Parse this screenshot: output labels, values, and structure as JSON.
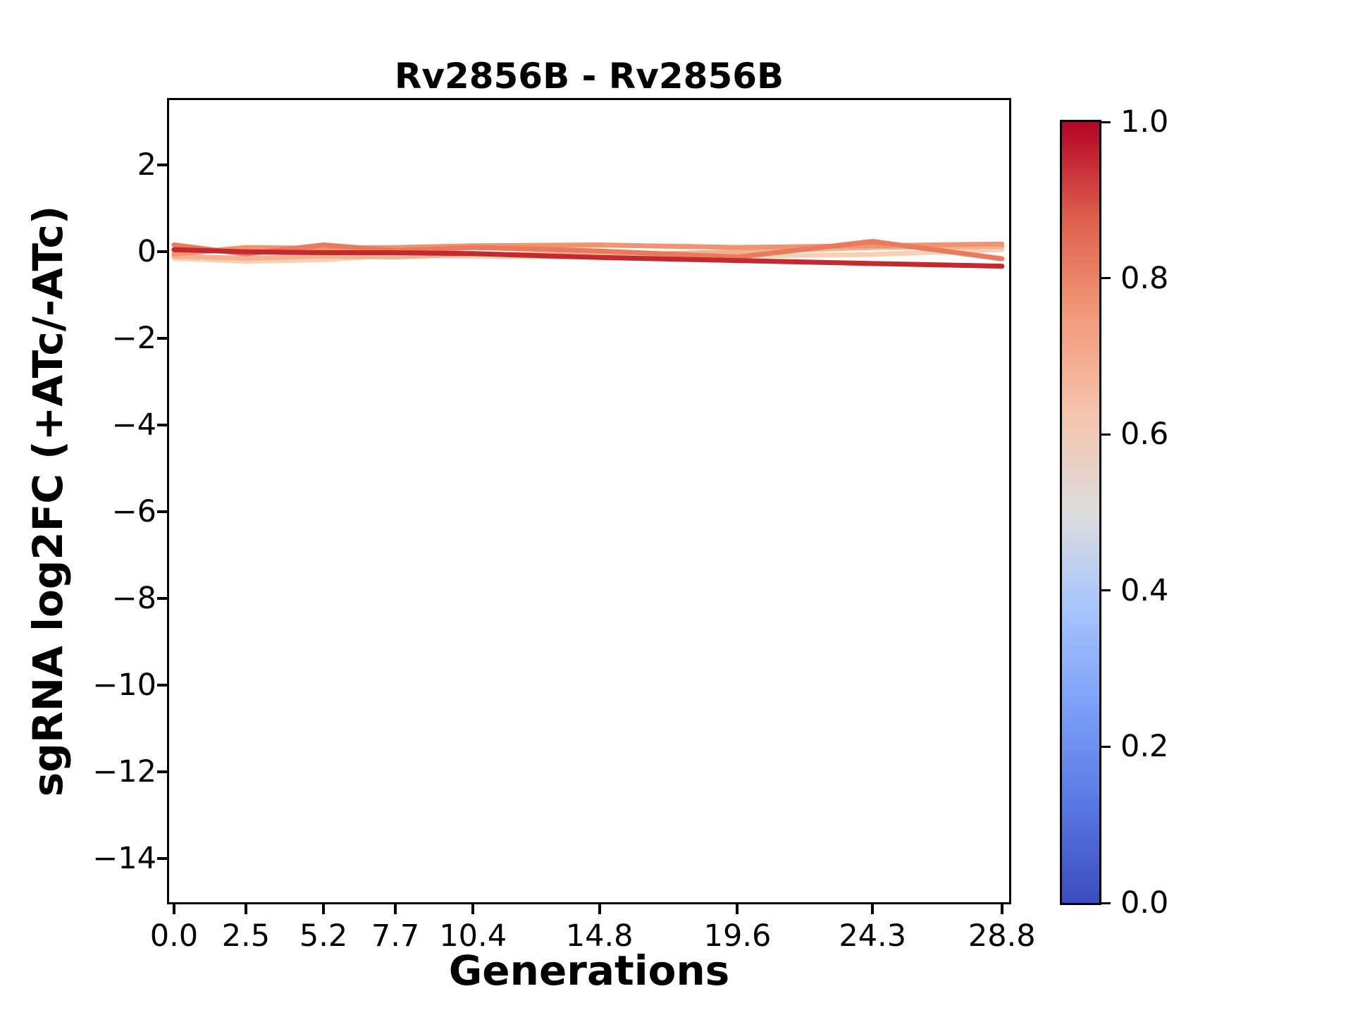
{
  "chart_data": {
    "type": "line",
    "title": "Rv2856B - Rv2856B",
    "xlabel": "Generations",
    "ylabel": "sgRNA log2FC (+ATc/-ATc)",
    "grid": false,
    "legend": "none (colorbar encodes line value)",
    "xlim": [
      -0.17,
      29.05
    ],
    "ylim": [
      -15,
      3.5
    ],
    "x": [
      0.0,
      2.5,
      5.2,
      7.7,
      10.4,
      14.8,
      19.6,
      24.3,
      28.8
    ],
    "xticks": {
      "values": [
        0.0,
        2.5,
        5.2,
        7.7,
        10.4,
        14.8,
        19.6,
        24.3,
        28.8
      ],
      "labels": [
        "0.0",
        "2.5",
        "5.2",
        "7.7",
        "10.4",
        "14.8",
        "19.6",
        "24.3",
        "28.8"
      ]
    },
    "yticks": {
      "values": [
        2,
        0,
        -2,
        -4,
        -6,
        -8,
        -10,
        -12,
        -14
      ],
      "labels": [
        "2",
        "0",
        "−2",
        "−4",
        "−6",
        "−8",
        "−10",
        "−12",
        "−14"
      ]
    },
    "series": [
      {
        "id": "line-5",
        "colormap_value": 0.58,
        "color": "#f8d0b5",
        "values": [
          -0.15,
          -0.22,
          -0.18,
          -0.08,
          -0.1,
          -0.12,
          -0.1,
          -0.06,
          0.05
        ]
      },
      {
        "id": "line-4",
        "colormap_value": 0.68,
        "color": "#f4b191",
        "values": [
          -0.1,
          -0.15,
          -0.1,
          -0.12,
          -0.05,
          -0.08,
          0.0,
          0.1,
          0.12
        ]
      },
      {
        "id": "line-3",
        "colormap_value": 0.76,
        "color": "#f0946f",
        "values": [
          -0.05,
          0.1,
          0.08,
          0.1,
          0.14,
          0.16,
          0.1,
          0.14,
          0.18
        ]
      },
      {
        "id": "line-2",
        "colormap_value": 0.84,
        "color": "#ea7a5d",
        "values": [
          0.16,
          -0.05,
          0.16,
          0.03,
          0.1,
          0.02,
          -0.12,
          0.24,
          -0.16
        ]
      },
      {
        "id": "line-1",
        "colormap_value": 0.97,
        "color": "#c22a30",
        "values": [
          0.05,
          0.0,
          -0.02,
          -0.02,
          -0.04,
          -0.13,
          -0.2,
          -0.27,
          -0.33
        ]
      }
    ],
    "colorbar": {
      "colormap": "coolwarm",
      "min": 0.0,
      "max": 1.0,
      "tick_values": [
        1.0,
        0.8,
        0.6,
        0.4,
        0.2,
        0.0
      ],
      "tick_labels": [
        "1.0",
        "0.8",
        "0.6",
        "0.4",
        "0.2",
        "0.0"
      ],
      "gradient": [
        {
          "pos": 0.0,
          "color": "#3b4cc0"
        },
        {
          "pos": 0.125,
          "color": "#5977e3"
        },
        {
          "pos": 0.25,
          "color": "#7c9ff9"
        },
        {
          "pos": 0.375,
          "color": "#a7c4fd"
        },
        {
          "pos": 0.5,
          "color": "#dddddd"
        },
        {
          "pos": 0.625,
          "color": "#f5c4ad"
        },
        {
          "pos": 0.75,
          "color": "#f49a7b"
        },
        {
          "pos": 0.875,
          "color": "#de604d"
        },
        {
          "pos": 1.0,
          "color": "#b40426"
        }
      ]
    }
  }
}
